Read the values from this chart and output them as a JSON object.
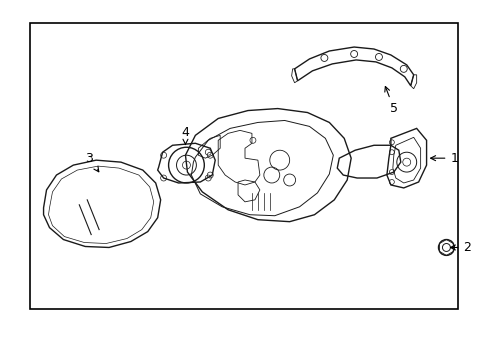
{
  "background_color": "#ffffff",
  "border_color": "#000000",
  "line_color": "#1a1a1a",
  "label_color": "#000000",
  "arrow_color": "#000000",
  "figsize": [
    4.89,
    3.6
  ],
  "dpi": 100,
  "border": [
    0.06,
    0.05,
    0.84,
    0.9
  ],
  "label_fontsize": 9
}
